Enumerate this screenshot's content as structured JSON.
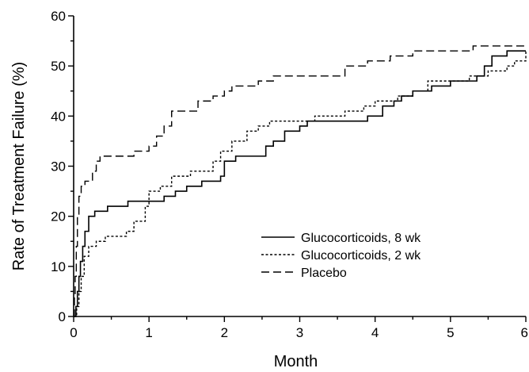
{
  "chart_data": {
    "type": "line",
    "step": true,
    "title": "",
    "xlabel": "Month",
    "ylabel": "Rate of Treatment Failure (%)",
    "xlim": [
      0,
      6
    ],
    "ylim": [
      0,
      60
    ],
    "x_ticks": [
      "0",
      "1",
      "2",
      "3",
      "4",
      "5",
      "6"
    ],
    "y_ticks": [
      "0",
      "10",
      "20",
      "30",
      "40",
      "50",
      "60"
    ],
    "grid": false,
    "legend_position": "center-right",
    "series": [
      {
        "name": "Glucocorticoids, 8 wk",
        "style": "solid",
        "points": [
          [
            0,
            0
          ],
          [
            0.03,
            2
          ],
          [
            0.05,
            5
          ],
          [
            0.07,
            8
          ],
          [
            0.09,
            11
          ],
          [
            0.12,
            14
          ],
          [
            0.15,
            17
          ],
          [
            0.2,
            20
          ],
          [
            0.28,
            21
          ],
          [
            0.45,
            22
          ],
          [
            0.72,
            23
          ],
          [
            0.95,
            23
          ],
          [
            1.2,
            24
          ],
          [
            1.35,
            25
          ],
          [
            1.5,
            26
          ],
          [
            1.7,
            27
          ],
          [
            1.95,
            28
          ],
          [
            2.0,
            31
          ],
          [
            2.15,
            32
          ],
          [
            2.5,
            32
          ],
          [
            2.55,
            34
          ],
          [
            2.65,
            35
          ],
          [
            2.8,
            37
          ],
          [
            3.0,
            38
          ],
          [
            3.1,
            39
          ],
          [
            3.5,
            39
          ],
          [
            3.9,
            40
          ],
          [
            4.1,
            42
          ],
          [
            4.25,
            43
          ],
          [
            4.35,
            44
          ],
          [
            4.5,
            45
          ],
          [
            4.75,
            46
          ],
          [
            5.0,
            47
          ],
          [
            5.3,
            47
          ],
          [
            5.35,
            48
          ],
          [
            5.45,
            50
          ],
          [
            5.55,
            52
          ],
          [
            5.65,
            52
          ],
          [
            5.75,
            53
          ],
          [
            5.95,
            53
          ],
          [
            6.0,
            53
          ]
        ]
      },
      {
        "name": "Glucocorticoids, 2 wk",
        "style": "dotted",
        "points": [
          [
            0,
            0
          ],
          [
            0.04,
            2
          ],
          [
            0.07,
            5
          ],
          [
            0.1,
            8
          ],
          [
            0.14,
            12
          ],
          [
            0.2,
            14
          ],
          [
            0.3,
            15
          ],
          [
            0.42,
            16
          ],
          [
            0.7,
            17
          ],
          [
            0.8,
            19
          ],
          [
            0.95,
            22
          ],
          [
            1.0,
            25
          ],
          [
            1.15,
            26
          ],
          [
            1.3,
            28
          ],
          [
            1.55,
            29
          ],
          [
            1.8,
            29
          ],
          [
            1.85,
            31
          ],
          [
            1.95,
            33
          ],
          [
            2.1,
            35
          ],
          [
            2.3,
            37
          ],
          [
            2.45,
            38
          ],
          [
            2.6,
            39
          ],
          [
            3.0,
            39
          ],
          [
            3.2,
            40
          ],
          [
            3.6,
            41
          ],
          [
            3.85,
            42
          ],
          [
            4.0,
            43
          ],
          [
            4.3,
            44
          ],
          [
            4.5,
            45
          ],
          [
            4.7,
            47
          ],
          [
            5.0,
            47
          ],
          [
            5.25,
            48
          ],
          [
            5.5,
            49
          ],
          [
            5.6,
            49
          ],
          [
            5.75,
            50
          ],
          [
            5.85,
            51
          ],
          [
            6.0,
            53
          ]
        ]
      },
      {
        "name": "Placebo",
        "style": "dashed",
        "points": [
          [
            0,
            0
          ],
          [
            0.01,
            4
          ],
          [
            0.02,
            8
          ],
          [
            0.035,
            14
          ],
          [
            0.05,
            20
          ],
          [
            0.07,
            24
          ],
          [
            0.1,
            26
          ],
          [
            0.15,
            27
          ],
          [
            0.25,
            29
          ],
          [
            0.3,
            31
          ],
          [
            0.35,
            32
          ],
          [
            0.6,
            32
          ],
          [
            0.8,
            33
          ],
          [
            1.0,
            34
          ],
          [
            1.1,
            36
          ],
          [
            1.2,
            38
          ],
          [
            1.3,
            41
          ],
          [
            1.5,
            41
          ],
          [
            1.65,
            43
          ],
          [
            1.85,
            44
          ],
          [
            2.0,
            45
          ],
          [
            2.1,
            46
          ],
          [
            2.3,
            46
          ],
          [
            2.45,
            47
          ],
          [
            2.65,
            48
          ],
          [
            3.55,
            48
          ],
          [
            3.6,
            50
          ],
          [
            3.9,
            51
          ],
          [
            4.2,
            52
          ],
          [
            4.5,
            53
          ],
          [
            5.1,
            53
          ],
          [
            5.3,
            54
          ],
          [
            6.0,
            54
          ]
        ]
      }
    ]
  }
}
